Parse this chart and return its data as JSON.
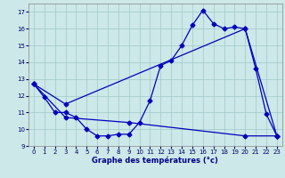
{
  "xlabel": "Graphe des températures (°c)",
  "xlim": [
    -0.5,
    23.5
  ],
  "ylim": [
    9,
    17.5
  ],
  "yticks": [
    9,
    10,
    11,
    12,
    13,
    14,
    15,
    16,
    17
  ],
  "xticks": [
    0,
    1,
    2,
    3,
    4,
    5,
    6,
    7,
    8,
    9,
    10,
    11,
    12,
    13,
    14,
    15,
    16,
    17,
    18,
    19,
    20,
    21,
    22,
    23
  ],
  "bg_color": "#cce8e8",
  "grid_color": "#a0c8c8",
  "line_color": "#0000bb",
  "line1": {
    "x": [
      0,
      1,
      2,
      3,
      4,
      5,
      6,
      7,
      8,
      9,
      10,
      11,
      12,
      13,
      14,
      15,
      16,
      17,
      18,
      19,
      20,
      21,
      22,
      23
    ],
    "y": [
      12.7,
      11.9,
      11.0,
      11.0,
      10.7,
      10.0,
      9.6,
      9.6,
      9.7,
      9.7,
      10.4,
      11.7,
      13.8,
      14.1,
      15.0,
      16.2,
      17.1,
      16.3,
      16.0,
      16.1,
      16.0,
      13.6,
      10.9,
      9.6
    ]
  },
  "line2": {
    "x": [
      0,
      3,
      20,
      23
    ],
    "y": [
      12.7,
      11.5,
      16.0,
      9.6
    ]
  },
  "line3": {
    "x": [
      0,
      3,
      9,
      20,
      23
    ],
    "y": [
      12.7,
      10.7,
      10.4,
      9.6,
      9.6
    ]
  }
}
